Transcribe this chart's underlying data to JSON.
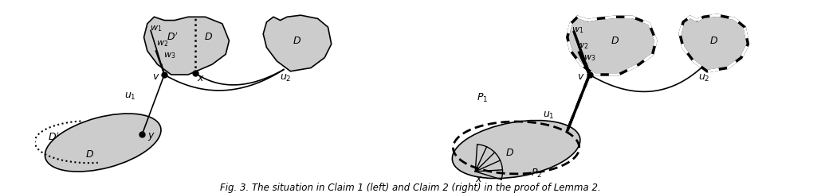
{
  "fig_width": 10.3,
  "fig_height": 2.43,
  "dpi": 100,
  "bg_color": "#ffffff",
  "gray_fill": "#cccccc",
  "gray_fill2": "#d4d4d4",
  "caption": "Fig. 3. The situation in Claim 1 (left) and Claim 2 (right) in the proof of Lemma 2."
}
